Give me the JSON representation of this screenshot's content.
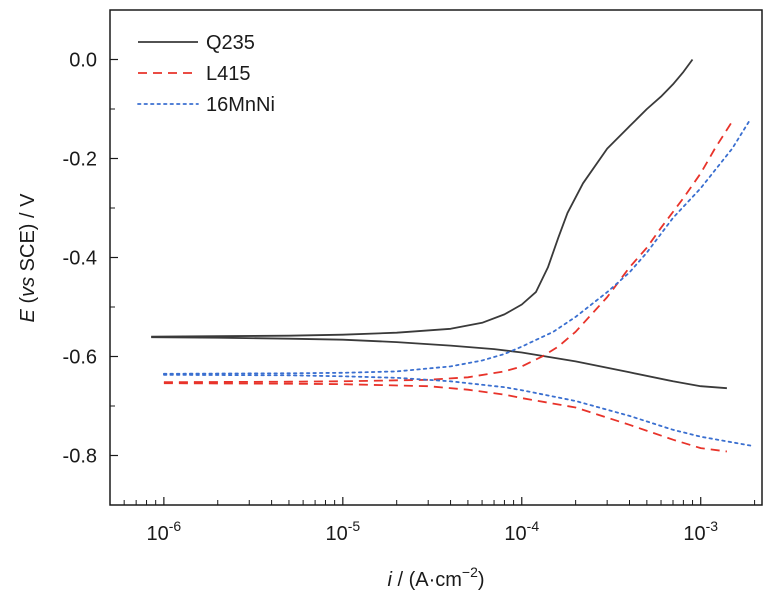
{
  "chart_data": {
    "type": "line",
    "x_scale": "log",
    "y_scale": "linear",
    "xlim": [
      5e-07,
      0.0022
    ],
    "ylim": [
      -0.9,
      0.1
    ],
    "grid": false,
    "legend_position": "top-left",
    "xlabel": {
      "var": "i",
      "rest": " / (A·cm",
      "sup": "−2",
      "close": ")"
    },
    "ylabel": {
      "var": "E",
      "open": " (",
      "vs": "vs",
      "rest": " SCE) / V"
    },
    "x_ticks": [
      {
        "mantissa": "10",
        "exp": "-6",
        "value": 1e-06
      },
      {
        "mantissa": "10",
        "exp": "-5",
        "value": 1e-05
      },
      {
        "mantissa": "10",
        "exp": "-4",
        "value": 0.0001
      },
      {
        "mantissa": "10",
        "exp": "-3",
        "value": 0.001
      }
    ],
    "y_ticks": [
      {
        "label": "0.0",
        "value": 0.0
      },
      {
        "label": "-0.2",
        "value": -0.2
      },
      {
        "label": "-0.4",
        "value": -0.4
      },
      {
        "label": "-0.6",
        "value": -0.6
      },
      {
        "label": "-0.8",
        "value": -0.8
      }
    ],
    "series": [
      {
        "name": "Q235",
        "color": "#3a3a3a",
        "style": "solid",
        "anodic": [
          [
            8.5e-07,
            -0.56
          ],
          [
            2e-06,
            -0.559
          ],
          [
            5e-06,
            -0.558
          ],
          [
            1e-05,
            -0.556
          ],
          [
            2e-05,
            -0.552
          ],
          [
            4e-05,
            -0.544
          ],
          [
            6e-05,
            -0.532
          ],
          [
            8e-05,
            -0.515
          ],
          [
            0.0001,
            -0.495
          ],
          [
            0.00012,
            -0.47
          ],
          [
            0.00014,
            -0.42
          ],
          [
            0.00016,
            -0.36
          ],
          [
            0.00018,
            -0.31
          ],
          [
            0.00022,
            -0.25
          ],
          [
            0.0003,
            -0.18
          ],
          [
            0.0004,
            -0.135
          ],
          [
            0.0005,
            -0.1
          ],
          [
            0.0006,
            -0.075
          ],
          [
            0.0007,
            -0.05
          ],
          [
            0.0008,
            -0.025
          ],
          [
            0.0009,
            0.0
          ]
        ],
        "cathodic": [
          [
            8.5e-07,
            -0.561
          ],
          [
            2e-06,
            -0.562
          ],
          [
            5e-06,
            -0.564
          ],
          [
            1e-05,
            -0.566
          ],
          [
            2e-05,
            -0.571
          ],
          [
            4e-05,
            -0.578
          ],
          [
            7e-05,
            -0.585
          ],
          [
            0.0001,
            -0.592
          ],
          [
            0.0002,
            -0.61
          ],
          [
            0.0004,
            -0.632
          ],
          [
            0.0007,
            -0.65
          ],
          [
            0.001,
            -0.66
          ],
          [
            0.0014,
            -0.664
          ]
        ]
      },
      {
        "name": "L415",
        "color": "#e8332a",
        "style": "dashed",
        "anodic": [
          [
            1e-06,
            -0.652
          ],
          [
            5e-06,
            -0.651
          ],
          [
            1e-05,
            -0.65
          ],
          [
            3e-05,
            -0.647
          ],
          [
            5e-05,
            -0.642
          ],
          [
            8e-05,
            -0.63
          ],
          [
            0.0001,
            -0.62
          ],
          [
            0.00013,
            -0.6
          ],
          [
            0.00016,
            -0.58
          ],
          [
            0.0002,
            -0.55
          ],
          [
            0.0003,
            -0.48
          ],
          [
            0.0004,
            -0.42
          ],
          [
            0.0005,
            -0.38
          ],
          [
            0.0006,
            -0.34
          ],
          [
            0.0008,
            -0.28
          ],
          [
            0.001,
            -0.23
          ],
          [
            0.0012,
            -0.18
          ],
          [
            0.0015,
            -0.125
          ]
        ],
        "cathodic": [
          [
            1e-06,
            -0.654
          ],
          [
            5e-06,
            -0.655
          ],
          [
            1e-05,
            -0.656
          ],
          [
            3e-05,
            -0.66
          ],
          [
            5e-05,
            -0.667
          ],
          [
            8e-05,
            -0.677
          ],
          [
            0.0001,
            -0.684
          ],
          [
            0.0002,
            -0.703
          ],
          [
            0.0004,
            -0.738
          ],
          [
            0.0007,
            -0.768
          ],
          [
            0.001,
            -0.785
          ],
          [
            0.0014,
            -0.792
          ]
        ]
      },
      {
        "name": "16MnNi",
        "color": "#3a6fd0",
        "style": "dotted",
        "anodic": [
          [
            1e-06,
            -0.635
          ],
          [
            5e-06,
            -0.634
          ],
          [
            1e-05,
            -0.633
          ],
          [
            2e-05,
            -0.63
          ],
          [
            4e-05,
            -0.62
          ],
          [
            6e-05,
            -0.608
          ],
          [
            8e-05,
            -0.595
          ],
          [
            0.0001,
            -0.58
          ],
          [
            0.00015,
            -0.55
          ],
          [
            0.0002,
            -0.52
          ],
          [
            0.0003,
            -0.47
          ],
          [
            0.0004,
            -0.43
          ],
          [
            0.0005,
            -0.39
          ],
          [
            0.0007,
            -0.32
          ],
          [
            0.001,
            -0.26
          ],
          [
            0.0015,
            -0.18
          ],
          [
            0.0019,
            -0.12
          ]
        ],
        "cathodic": [
          [
            1e-06,
            -0.637
          ],
          [
            5e-06,
            -0.638
          ],
          [
            1e-05,
            -0.64
          ],
          [
            2e-05,
            -0.643
          ],
          [
            4e-05,
            -0.65
          ],
          [
            8e-05,
            -0.662
          ],
          [
            0.0001,
            -0.668
          ],
          [
            0.0002,
            -0.69
          ],
          [
            0.0004,
            -0.72
          ],
          [
            0.0007,
            -0.748
          ],
          [
            0.001,
            -0.762
          ],
          [
            0.0019,
            -0.78
          ]
        ]
      }
    ]
  }
}
